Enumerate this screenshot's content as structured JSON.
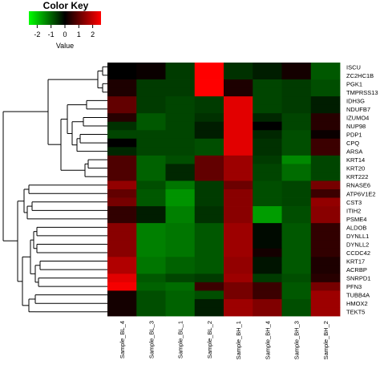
{
  "chart_data": {
    "type": "heatmap",
    "color_key": {
      "title": "Color Key",
      "axis_label": "Value",
      "ticks": [
        "-2",
        "-1",
        "0",
        "1",
        "2"
      ],
      "range": [
        -2.6,
        2.6
      ],
      "low_color": "#00ff00",
      "mid_color": "#000000",
      "high_color": "#ff0000"
    },
    "columns": [
      "Sample_BL_4",
      "Sample_BL_3",
      "Sample_BL_1",
      "Sample_BL_2",
      "Sample_BH_1",
      "Sample_BH_4",
      "Sample_BH_3",
      "Sample_BH_2"
    ],
    "rows": [
      "ISCU",
      "ZC2HC1B",
      "PGK1",
      "TMPRSS13",
      "IDH3G",
      "NDUFB7",
      "IZUMO4",
      "NUP98",
      "PDP1",
      "CPQ",
      "ARSA",
      "KRT14",
      "KRT20",
      "KRT222",
      "RNASE6",
      "ATP6V1E2",
      "CST3",
      "ITIH2",
      "PSME4",
      "ALDOB",
      "DYNLL1",
      "DYNLL2",
      "CCDC42",
      "KRT17",
      "ACRBP",
      "SNRPD1",
      "PFN3",
      "TUBB4A",
      "HMOX2",
      "TEKT5"
    ],
    "values": [
      [
        0.0,
        0.1,
        -0.6,
        2.6,
        -0.5,
        -0.3,
        0.2,
        -0.9
      ],
      [
        0.0,
        0.1,
        -0.6,
        2.6,
        -0.5,
        -0.3,
        0.2,
        -0.9
      ],
      [
        0.3,
        -0.6,
        -0.6,
        2.6,
        0.3,
        -0.7,
        -0.6,
        -0.8
      ],
      [
        0.3,
        -0.6,
        -0.6,
        2.6,
        0.3,
        -0.7,
        -0.6,
        -0.8
      ],
      [
        1.0,
        -0.6,
        -0.7,
        -0.6,
        2.3,
        -0.7,
        -0.6,
        -0.3
      ],
      [
        1.0,
        -0.6,
        -0.7,
        -0.6,
        2.3,
        -0.7,
        -0.6,
        -0.3
      ],
      [
        0.4,
        -0.9,
        -0.7,
        -0.5,
        2.3,
        -0.4,
        -0.7,
        0.4
      ],
      [
        -0.5,
        -0.9,
        -0.7,
        -0.3,
        2.3,
        0.0,
        -0.7,
        0.4
      ],
      [
        -0.7,
        -0.7,
        -0.7,
        -0.3,
        2.3,
        -0.4,
        -0.8,
        0.1
      ],
      [
        0.0,
        -0.7,
        -0.7,
        -0.8,
        2.3,
        -0.5,
        -0.8,
        0.6
      ],
      [
        -0.4,
        -0.7,
        -0.7,
        -0.8,
        2.3,
        -0.5,
        -0.8,
        0.6
      ],
      [
        0.8,
        -1.0,
        -0.8,
        1.0,
        1.6,
        -0.6,
        -1.4,
        -0.7
      ],
      [
        0.8,
        -1.0,
        -0.4,
        1.0,
        1.6,
        -0.7,
        -1.1,
        -0.7
      ],
      [
        0.8,
        -1.0,
        -0.4,
        1.0,
        1.6,
        -0.7,
        -1.1,
        -0.7
      ],
      [
        1.5,
        -0.8,
        -1.2,
        -0.6,
        1.1,
        -0.8,
        -0.7,
        1.2
      ],
      [
        1.0,
        -0.9,
        -1.5,
        -0.6,
        1.4,
        -0.8,
        -0.7,
        0.6
      ],
      [
        1.2,
        -0.9,
        -1.5,
        -0.6,
        1.4,
        -0.8,
        -0.7,
        1.5
      ],
      [
        0.5,
        -0.3,
        -1.3,
        -0.5,
        1.4,
        -1.6,
        -0.8,
        1.4
      ],
      [
        0.5,
        -0.3,
        -1.3,
        -0.5,
        1.4,
        -1.6,
        -0.8,
        1.4
      ],
      [
        1.4,
        -1.3,
        -1.2,
        -0.9,
        1.6,
        -0.1,
        -0.9,
        0.5
      ],
      [
        1.4,
        -1.3,
        -1.2,
        -0.9,
        1.6,
        -0.1,
        -0.9,
        0.5
      ],
      [
        1.4,
        -1.3,
        -1.2,
        -0.9,
        1.6,
        -0.1,
        -0.9,
        0.5
      ],
      [
        1.4,
        -1.3,
        -1.2,
        -0.9,
        1.6,
        0.2,
        -0.9,
        0.5
      ],
      [
        1.8,
        -1.2,
        -1.0,
        -0.9,
        1.5,
        -0.2,
        -0.9,
        0.3
      ],
      [
        1.8,
        -1.2,
        -1.0,
        -0.9,
        1.5,
        -0.2,
        -0.9,
        0.3
      ],
      [
        2.3,
        -0.9,
        -0.7,
        -0.6,
        1.6,
        -0.6,
        -0.8,
        0.4
      ],
      [
        2.5,
        -1.0,
        -1.1,
        0.6,
        1.2,
        0.6,
        -0.9,
        1.2
      ],
      [
        0.2,
        -0.8,
        -1.0,
        -0.8,
        1.2,
        0.6,
        -0.9,
        1.6
      ],
      [
        0.2,
        -0.8,
        -1.0,
        -0.3,
        1.6,
        1.3,
        -0.8,
        1.6
      ],
      [
        0.2,
        -0.8,
        -1.0,
        -0.3,
        1.6,
        1.3,
        -0.8,
        1.6
      ]
    ]
  }
}
